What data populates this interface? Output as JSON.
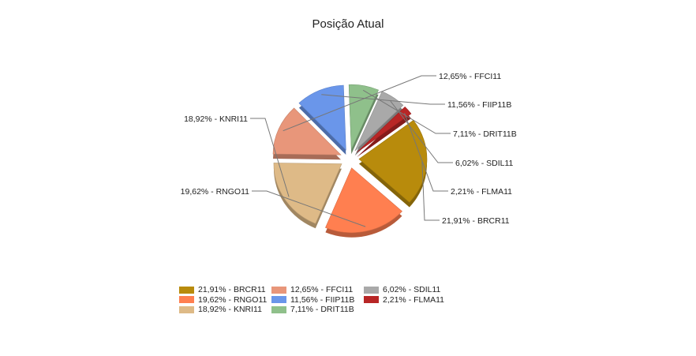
{
  "chart_data": {
    "type": "pie",
    "title": "Posição Atual",
    "slices": [
      {
        "name": "FFCI11",
        "value": 12.65,
        "label": "12,65% - FFCI11",
        "color": "#e8967a"
      },
      {
        "name": "FIIP11B",
        "value": 11.56,
        "label": "11,56% - FIIP11B",
        "color": "#6a96ea"
      },
      {
        "name": "DRIT11B",
        "value": 7.11,
        "label": "7,11% - DRIT11B",
        "color": "#8fc08b"
      },
      {
        "name": "SDIL11",
        "value": 6.02,
        "label": "6,02% - SDIL11",
        "color": "#a9a9a9"
      },
      {
        "name": "FLMA11",
        "value": 2.21,
        "label": "2,21% - FLMA11",
        "color": "#b82626"
      },
      {
        "name": "BRCR11",
        "value": 21.91,
        "label": "21,91% - BRCR11",
        "color": "#b88b0c"
      },
      {
        "name": "RNGO11",
        "value": 19.62,
        "label": "19,62% - RNGO11",
        "color": "#ff7f50"
      },
      {
        "name": "KNRI11",
        "value": 18.92,
        "label": "18,92% - KNRI11",
        "color": "#deba87"
      }
    ],
    "legend": [
      {
        "label": "21,91% - BRCR11",
        "color": "#b88b0c"
      },
      {
        "label": "12,65% - FFCI11",
        "color": "#e8967a"
      },
      {
        "label": "6,02% - SDIL11",
        "color": "#a9a9a9"
      },
      {
        "label": "19,62% - RNGO11",
        "color": "#ff7f50"
      },
      {
        "label": "11,56% - FIIP11B",
        "color": "#6a96ea"
      },
      {
        "label": "2,21% - FLMA11",
        "color": "#b82626"
      },
      {
        "label": "18,92% - KNRI11",
        "color": "#deba87"
      },
      {
        "label": "7,11% - DRIT11B",
        "color": "#8fc08b"
      }
    ],
    "legend_position": "bottom"
  }
}
